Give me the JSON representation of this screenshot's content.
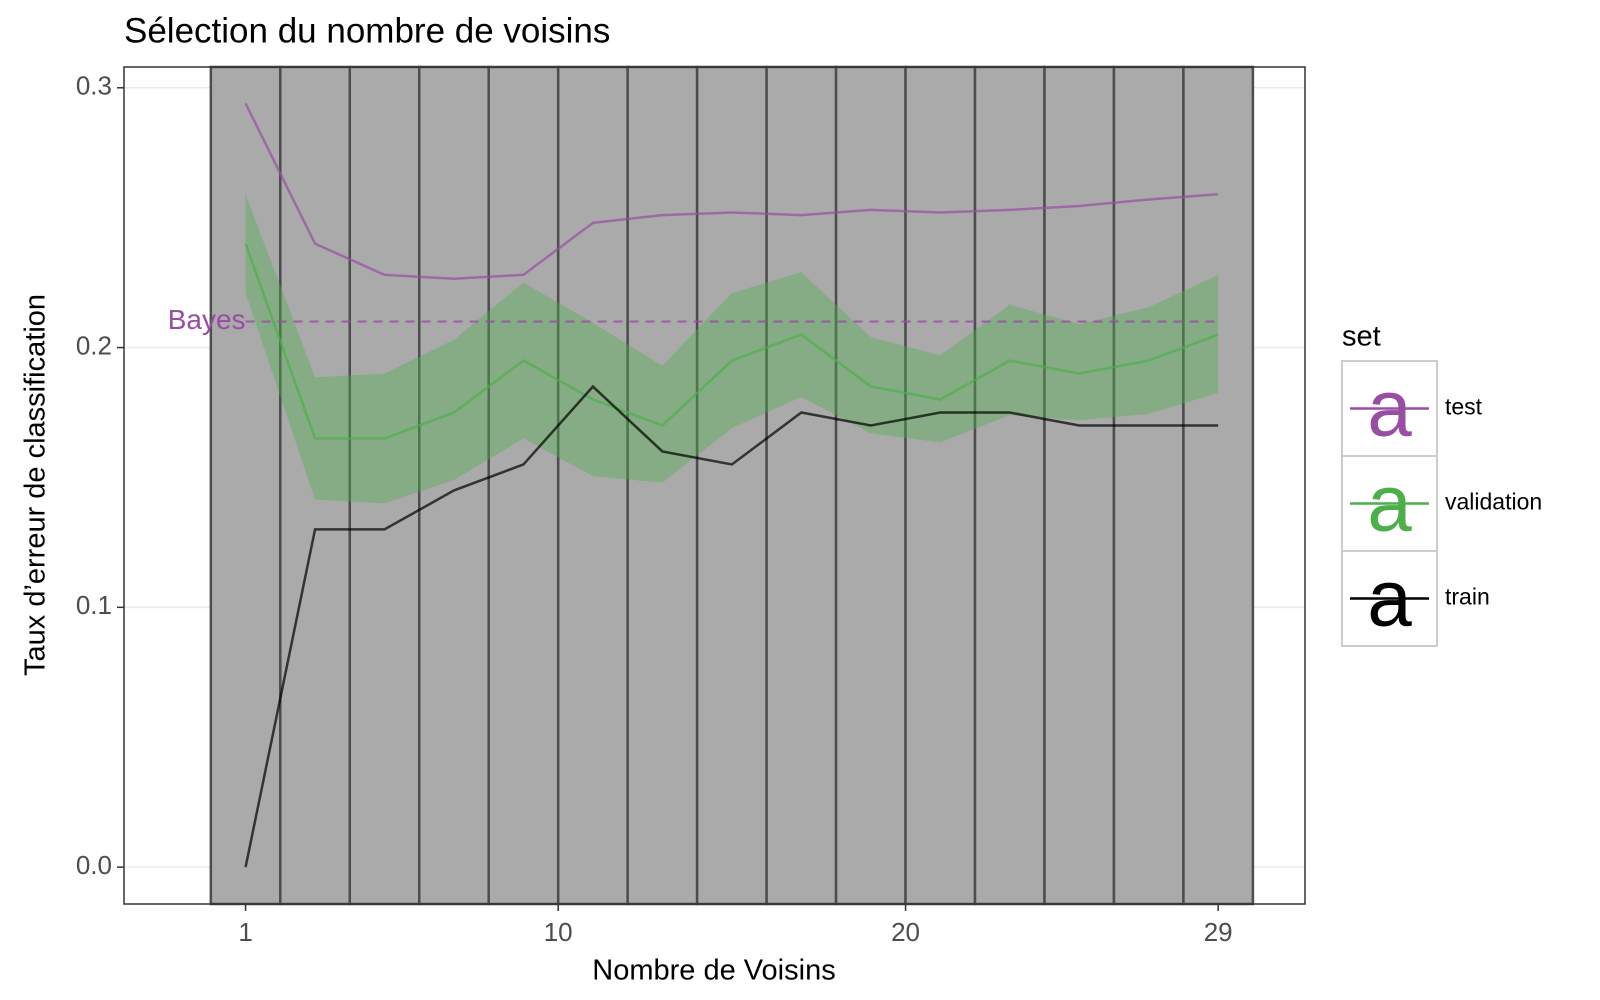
{
  "chart_data": {
    "type": "line",
    "title": "Sélection du nombre de voisins",
    "x_label": "Nombre de Voisins",
    "y_label": "Taux d’erreur de classification",
    "x": [
      1,
      3,
      5,
      7,
      9,
      11,
      13,
      15,
      17,
      19,
      21,
      23,
      25,
      27,
      29
    ],
    "xlim": [
      -2.5,
      31.5
    ],
    "xticks": [
      1,
      10,
      20,
      29
    ],
    "ylim": [
      -0.0142,
      0.308
    ],
    "yticks": [
      {
        "value": 0,
        "label": "0.0"
      },
      0.1,
      0.2,
      0.3
    ],
    "grid": true,
    "legend_title": "set",
    "legend_position": "right",
    "series": [
      {
        "name": "test",
        "color": "#984ea3",
        "values": [
          0.294,
          0.24,
          0.228,
          0.2265,
          0.228,
          0.248,
          0.251,
          0.252,
          0.251,
          0.253,
          0.252,
          0.253,
          0.2545,
          0.257,
          0.259
        ]
      },
      {
        "name": "validation",
        "color": "#4daf4a",
        "values": [
          0.24,
          0.165,
          0.165,
          0.175,
          0.195,
          0.18,
          0.17,
          0.195,
          0.205,
          0.185,
          0.18,
          0.195,
          0.19,
          0.195,
          0.205
        ],
        "band": {
          "upper": [
            0.259,
            0.1885,
            0.19,
            0.203,
            0.225,
            0.2095,
            0.193,
            0.221,
            0.229,
            0.204,
            0.197,
            0.2165,
            0.209,
            0.2155,
            0.228
          ],
          "lower": [
            0.221,
            0.1415,
            0.14,
            0.149,
            0.165,
            0.1505,
            0.148,
            0.169,
            0.181,
            0.167,
            0.1635,
            0.174,
            0.172,
            0.1745,
            0.1825
          ]
        }
      },
      {
        "name": "train",
        "color": "#000000",
        "values": [
          0,
          0.13,
          0.13,
          0.145,
          0.155,
          0.185,
          0.16,
          0.155,
          0.175,
          0.17,
          0.175,
          0.175,
          0.17,
          0.17,
          0.17
        ]
      }
    ],
    "hline": {
      "label": "Bayes",
      "value": 0.21,
      "color": "#984ea3"
    }
  }
}
